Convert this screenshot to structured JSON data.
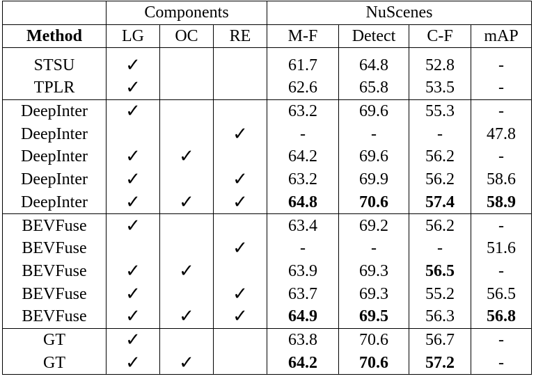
{
  "header": {
    "components_label": "Components",
    "nuscenes_label": "NuScenes",
    "method_label": "Method",
    "columns": [
      "LG",
      "OC",
      "RE",
      "M-F",
      "Detect",
      "C-F",
      "mAP"
    ]
  },
  "check_symbol": "✓",
  "groups": [
    {
      "rows": [
        {
          "method": "STSU",
          "lg": "✓",
          "oc": "",
          "re": "",
          "mf": "61.7",
          "detect": "64.8",
          "cf": "52.8",
          "map": "-",
          "bold": []
        },
        {
          "method": "TPLR",
          "lg": "✓",
          "oc": "",
          "re": "",
          "mf": "62.6",
          "detect": "65.8",
          "cf": "53.5",
          "map": "-",
          "bold": []
        }
      ]
    },
    {
      "rows": [
        {
          "method": "DeepInter",
          "lg": "✓",
          "oc": "",
          "re": "",
          "mf": "63.2",
          "detect": "69.6",
          "cf": "55.3",
          "map": "-",
          "bold": []
        },
        {
          "method": "DeepInter",
          "lg": "",
          "oc": "",
          "re": "✓",
          "mf": "-",
          "detect": "-",
          "cf": "-",
          "map": "47.8",
          "bold": []
        },
        {
          "method": "DeepInter",
          "lg": "✓",
          "oc": "✓",
          "re": "",
          "mf": "64.2",
          "detect": "69.6",
          "cf": "56.2",
          "map": "-",
          "bold": []
        },
        {
          "method": "DeepInter",
          "lg": "✓",
          "oc": "",
          "re": "✓",
          "mf": "63.2",
          "detect": "69.9",
          "cf": "56.2",
          "map": "58.6",
          "bold": []
        },
        {
          "method": "DeepInter",
          "lg": "✓",
          "oc": "✓",
          "re": "✓",
          "mf": "64.8",
          "detect": "70.6",
          "cf": "57.4",
          "map": "58.9",
          "bold": [
            "mf",
            "detect",
            "cf",
            "map"
          ]
        }
      ]
    },
    {
      "rows": [
        {
          "method": "BEVFuse",
          "lg": "✓",
          "oc": "",
          "re": "",
          "mf": "63.4",
          "detect": "69.2",
          "cf": "56.2",
          "map": "-",
          "bold": []
        },
        {
          "method": "BEVFuse",
          "lg": "",
          "oc": "",
          "re": "✓",
          "mf": "-",
          "detect": "-",
          "cf": "-",
          "map": "51.6",
          "bold": []
        },
        {
          "method": "BEVFuse",
          "lg": "✓",
          "oc": "✓",
          "re": "",
          "mf": "63.9",
          "detect": "69.3",
          "cf": "56.5",
          "map": "-",
          "bold": [
            "cf"
          ]
        },
        {
          "method": "BEVFuse",
          "lg": "✓",
          "oc": "",
          "re": "✓",
          "mf": "63.7",
          "detect": "69.3",
          "cf": "55.2",
          "map": "56.5",
          "bold": []
        },
        {
          "method": "BEVFuse",
          "lg": "✓",
          "oc": "✓",
          "re": "✓",
          "mf": "64.9",
          "detect": "69.5",
          "cf": "56.3",
          "map": "56.8",
          "bold": [
            "mf",
            "detect",
            "map"
          ]
        }
      ]
    },
    {
      "rows": [
        {
          "method": "GT",
          "lg": "✓",
          "oc": "",
          "re": "",
          "mf": "63.8",
          "detect": "70.6",
          "cf": "56.7",
          "map": "-",
          "bold": []
        },
        {
          "method": "GT",
          "lg": "✓",
          "oc": "✓",
          "re": "",
          "mf": "64.2",
          "detect": "70.6",
          "cf": "57.2",
          "map": "-",
          "bold": [
            "mf",
            "detect",
            "cf"
          ]
        }
      ]
    }
  ]
}
